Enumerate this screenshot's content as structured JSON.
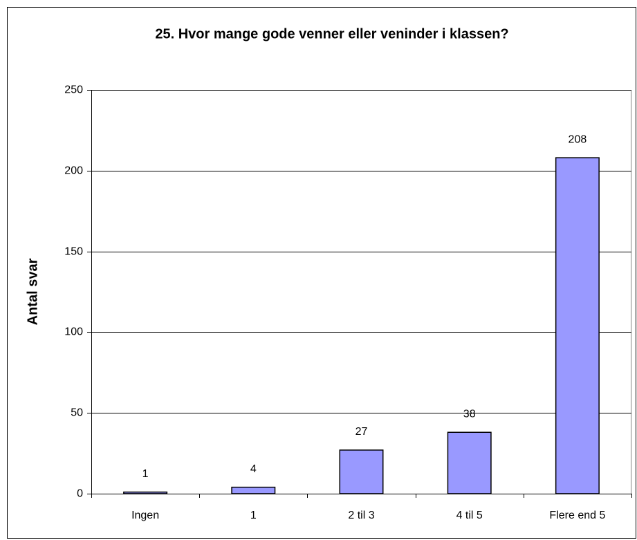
{
  "chart_data": {
    "type": "bar",
    "title": "25. Hvor mange gode venner eller veninder i klassen?",
    "y_label": "Antal svar",
    "categories": [
      "Ingen",
      "1",
      "2 til 3",
      "4 til 5",
      "Flere end 5"
    ],
    "values": [
      1,
      4,
      27,
      38,
      208
    ],
    "color": "#9999ff",
    "ylim": [
      0,
      250
    ],
    "yticks": [
      0,
      50,
      100,
      150,
      200,
      250
    ],
    "grid": true
  }
}
